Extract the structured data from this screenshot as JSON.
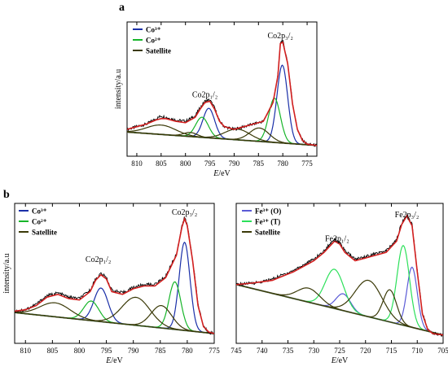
{
  "panel_labels": [
    "a",
    "b"
  ],
  "chart_data": [
    {
      "type": "line",
      "panel": "a",
      "xlabel": "E/eV",
      "ylabel": "intensity/a.u",
      "xlim": [
        812,
        773
      ],
      "ylim": [
        0,
        100
      ],
      "xticks": [
        810,
        805,
        800,
        795,
        790,
        785,
        780,
        775
      ],
      "legend": [
        "Co³⁺",
        "Co²⁺",
        "Satellite"
      ],
      "legend_position": "top-left",
      "annotations": [
        {
          "text": "Co2p₃/₂",
          "x": 780.5,
          "y": 88
        },
        {
          "text": "Co2p₁/₂",
          "x": 796.0,
          "y": 44
        }
      ],
      "baseline": {
        "start": 18,
        "end": 8
      },
      "measured": [
        [
          812,
          20
        ],
        [
          810,
          22
        ],
        [
          808,
          24
        ],
        [
          806,
          28
        ],
        [
          805,
          30
        ],
        [
          804,
          29
        ],
        [
          802,
          27
        ],
        [
          800,
          26
        ],
        [
          798,
          30
        ],
        [
          797,
          36
        ],
        [
          796,
          41
        ],
        [
          795,
          42
        ],
        [
          794,
          36
        ],
        [
          793,
          26
        ],
        [
          792,
          22
        ],
        [
          790,
          20
        ],
        [
          788,
          22
        ],
        [
          786,
          24
        ],
        [
          784,
          26
        ],
        [
          782,
          40
        ],
        [
          781,
          60
        ],
        [
          780.5,
          85
        ],
        [
          780,
          86
        ],
        [
          779,
          70
        ],
        [
          778,
          40
        ],
        [
          777,
          20
        ],
        [
          776,
          12
        ],
        [
          775,
          9
        ],
        [
          773,
          8
        ]
      ],
      "fit": [
        [
          812,
          20
        ],
        [
          810,
          22
        ],
        [
          808,
          24
        ],
        [
          806,
          27
        ],
        [
          805,
          28
        ],
        [
          804,
          28
        ],
        [
          802,
          26
        ],
        [
          800,
          25
        ],
        [
          798,
          29
        ],
        [
          797,
          35
        ],
        [
          796,
          40
        ],
        [
          795,
          41
        ],
        [
          794,
          35
        ],
        [
          793,
          26
        ],
        [
          792,
          22
        ],
        [
          790,
          20
        ],
        [
          788,
          22
        ],
        [
          786,
          24
        ],
        [
          784,
          26
        ],
        [
          782,
          40
        ],
        [
          781,
          60
        ],
        [
          780.5,
          84
        ],
        [
          780,
          85
        ],
        [
          779,
          69
        ],
        [
          778,
          39
        ],
        [
          777,
          20
        ],
        [
          776,
          12
        ],
        [
          775,
          9
        ],
        [
          773,
          8
        ]
      ],
      "series": [
        {
          "name": "Co³⁺",
          "color": "#1a2fa8",
          "peaks": [
            {
              "center": 795.2,
              "height": 22,
              "width": 1.2
            },
            {
              "center": 780.1,
              "height": 58,
              "width": 1.1
            }
          ]
        },
        {
          "name": "Co²⁺",
          "color": "#17b52a",
          "peaks": [
            {
              "center": 796.6,
              "height": 15,
              "width": 1.3
            },
            {
              "center": 781.7,
              "height": 33,
              "width": 1.2
            }
          ]
        },
        {
          "name": "Satellite",
          "color": "#3b3a08",
          "peaks": [
            {
              "center": 805,
              "height": 7,
              "width": 3.0
            },
            {
              "center": 799,
              "height": 3,
              "width": 1.4
            },
            {
              "center": 789.3,
              "height": 8,
              "width": 2.6
            },
            {
              "center": 784.8,
              "height": 10,
              "width": 2.0
            }
          ]
        }
      ]
    },
    {
      "type": "line",
      "panel": "b-left",
      "xlabel": "E/eV",
      "ylabel": "intensity/a.u",
      "xlim": [
        812,
        775
      ],
      "ylim": [
        0,
        100
      ],
      "xticks": [
        810,
        805,
        800,
        795,
        790,
        785,
        780,
        775
      ],
      "legend": [
        "Co³⁺",
        "Co²⁺",
        "Satellite"
      ],
      "legend_position": "top-left",
      "annotations": [
        {
          "text": "Co2p₃/₂",
          "x": 780.5,
          "y": 92
        },
        {
          "text": "Co2p₁/₂",
          "x": 796.5,
          "y": 58
        }
      ],
      "baseline": {
        "start": 22,
        "end": 7
      },
      "measured": [
        [
          812,
          23
        ],
        [
          810,
          24
        ],
        [
          808,
          28
        ],
        [
          806,
          34
        ],
        [
          804,
          36
        ],
        [
          802,
          33
        ],
        [
          800,
          32
        ],
        [
          798,
          38
        ],
        [
          797,
          46
        ],
        [
          796,
          50
        ],
        [
          795,
          47
        ],
        [
          794,
          38
        ],
        [
          792,
          36
        ],
        [
          790,
          40
        ],
        [
          788,
          42
        ],
        [
          786,
          42
        ],
        [
          784,
          48
        ],
        [
          782,
          64
        ],
        [
          781,
          84
        ],
        [
          780.5,
          90
        ],
        [
          780,
          85
        ],
        [
          779,
          60
        ],
        [
          778,
          28
        ],
        [
          777,
          12
        ],
        [
          776,
          8
        ],
        [
          775,
          7
        ]
      ],
      "fit": [
        [
          812,
          23
        ],
        [
          810,
          24
        ],
        [
          808,
          27
        ],
        [
          806,
          33
        ],
        [
          804,
          35
        ],
        [
          802,
          32
        ],
        [
          800,
          31
        ],
        [
          798,
          37
        ],
        [
          797,
          45
        ],
        [
          796,
          49
        ],
        [
          795,
          46
        ],
        [
          794,
          37
        ],
        [
          792,
          35
        ],
        [
          790,
          39
        ],
        [
          788,
          41
        ],
        [
          786,
          41
        ],
        [
          784,
          47
        ],
        [
          782,
          63
        ],
        [
          781,
          83
        ],
        [
          780.5,
          89
        ],
        [
          780,
          84
        ],
        [
          779,
          59
        ],
        [
          778,
          27
        ],
        [
          777,
          12
        ],
        [
          776,
          8
        ],
        [
          775,
          7
        ]
      ],
      "series": [
        {
          "name": "Co³⁺",
          "color": "#1a2fa8",
          "peaks": [
            {
              "center": 796.0,
              "height": 24,
              "width": 1.3
            },
            {
              "center": 780.5,
              "height": 63,
              "width": 1.0
            }
          ]
        },
        {
          "name": "Co²⁺",
          "color": "#17b52a",
          "peaks": [
            {
              "center": 797.8,
              "height": 14,
              "width": 1.4
            },
            {
              "center": 782.3,
              "height": 34,
              "width": 1.1
            }
          ]
        },
        {
          "name": "Satellite",
          "color": "#3b3a08",
          "peaks": [
            {
              "center": 804.5,
              "height": 10,
              "width": 2.8
            },
            {
              "center": 789.5,
              "height": 20,
              "width": 2.6
            },
            {
              "center": 784.8,
              "height": 16,
              "width": 1.9
            }
          ]
        }
      ]
    },
    {
      "type": "line",
      "panel": "b-right",
      "xlabel": "E/eV",
      "ylabel": "",
      "xlim": [
        745,
        705
      ],
      "ylim": [
        0,
        100
      ],
      "xticks": [
        745,
        740,
        735,
        730,
        725,
        720,
        715,
        710,
        705
      ],
      "legend": [
        "Fe³⁺ (O)",
        "Fe³⁺ (T)",
        "Satellite"
      ],
      "legend_position": "top-left",
      "annotations": [
        {
          "text": "Fe2p₁/₂",
          "x": 725.5,
          "y": 73
        },
        {
          "text": "Fe2p₃/₂",
          "x": 712,
          "y": 90
        }
      ],
      "baseline": {
        "start": 42,
        "end": 6
      },
      "measured": [
        [
          745,
          42
        ],
        [
          742,
          43
        ],
        [
          740,
          44
        ],
        [
          738,
          46
        ],
        [
          736,
          49
        ],
        [
          734,
          52
        ],
        [
          732,
          56
        ],
        [
          730,
          60
        ],
        [
          728,
          66
        ],
        [
          726,
          75
        ],
        [
          725,
          72
        ],
        [
          724,
          66
        ],
        [
          722,
          60
        ],
        [
          720,
          62
        ],
        [
          718,
          64
        ],
        [
          716,
          66
        ],
        [
          714,
          74
        ],
        [
          713,
          86
        ],
        [
          712,
          92
        ],
        [
          711,
          85
        ],
        [
          710,
          52
        ],
        [
          709,
          22
        ],
        [
          708,
          10
        ],
        [
          707,
          7
        ],
        [
          705,
          6
        ]
      ],
      "fit": [
        [
          745,
          42
        ],
        [
          742,
          43
        ],
        [
          740,
          44
        ],
        [
          738,
          45
        ],
        [
          736,
          48
        ],
        [
          734,
          51
        ],
        [
          732,
          55
        ],
        [
          730,
          59
        ],
        [
          728,
          65
        ],
        [
          726,
          73
        ],
        [
          725,
          71
        ],
        [
          724,
          65
        ],
        [
          722,
          59
        ],
        [
          720,
          61
        ],
        [
          718,
          63
        ],
        [
          716,
          65
        ],
        [
          714,
          73
        ],
        [
          713,
          85
        ],
        [
          712,
          91
        ],
        [
          711,
          84
        ],
        [
          710,
          51
        ],
        [
          709,
          21
        ],
        [
          708,
          10
        ],
        [
          707,
          7
        ],
        [
          705,
          6
        ]
      ],
      "series": [
        {
          "name": "Fe³⁺ (O)",
          "color": "#5b5bd6",
          "peaks": [
            {
              "center": 724.3,
              "height": 12,
              "width": 1.4
            },
            {
              "center": 711.0,
              "height": 43,
              "width": 1.0
            }
          ]
        },
        {
          "name": "Fe³⁺ (T)",
          "color": "#2ce05a",
          "peaks": [
            {
              "center": 726.0,
              "height": 28,
              "width": 1.8
            },
            {
              "center": 712.7,
              "height": 57,
              "width": 1.2
            }
          ]
        },
        {
          "name": "Satellite",
          "color": "#3b3a08",
          "peaks": [
            {
              "center": 731.0,
              "height": 10,
              "width": 2.2
            },
            {
              "center": 719.4,
              "height": 26,
              "width": 2.6
            },
            {
              "center": 715.3,
              "height": 23,
              "width": 1.3
            }
          ]
        }
      ]
    }
  ]
}
